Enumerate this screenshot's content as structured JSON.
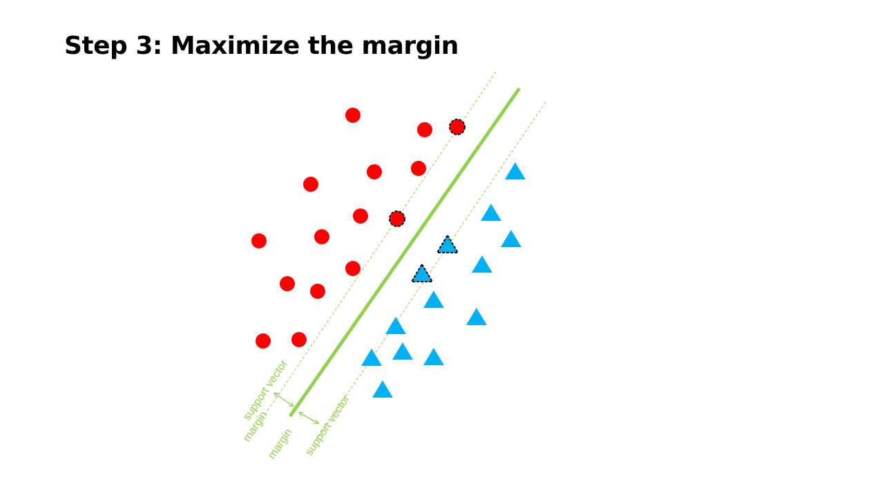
{
  "slide": {
    "title": "Step 3: Maximize the margin"
  },
  "colors": {
    "class_a": "#ff0000",
    "class_b": "#00b0f0",
    "hyperplane": "#92d050",
    "support_outline": "#000000"
  },
  "labels": {
    "upper_support_vector": "support vector",
    "upper_margin": "margin",
    "lower_margin": "margin",
    "lower_support_vector": "support vector"
  }
}
